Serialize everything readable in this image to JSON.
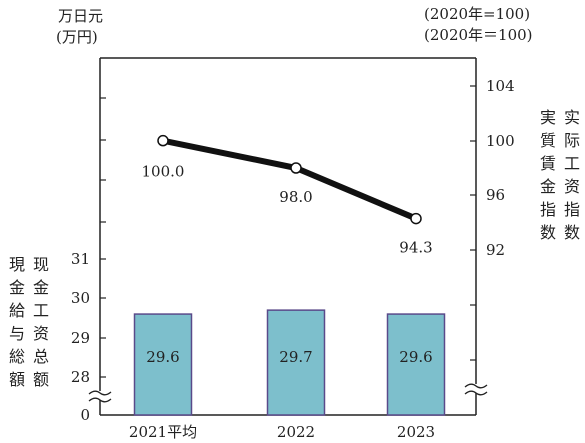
{
  "chart_data": {
    "type": "bar+line",
    "categories": [
      "2021平均",
      "2022",
      "2023"
    ],
    "series": [
      {
        "name": "現金給与総額",
        "type": "bar",
        "axis": "left",
        "values": [
          29.6,
          29.7,
          29.6
        ],
        "data_labels": [
          "29.6",
          "29.7",
          "29.6"
        ]
      },
      {
        "name": "実質賃金指数",
        "type": "line",
        "axis": "right",
        "values": [
          100.0,
          98.0,
          94.3
        ],
        "data_labels": [
          "100.0",
          "98.0",
          "94.3"
        ]
      }
    ],
    "left_axis": {
      "unit_ja": "万日元",
      "unit_zh": "(万円)",
      "title_ja": "現金給与総額",
      "title_zh": "现金工资总额",
      "ticks": [
        "0",
        "28",
        "29",
        "30",
        "31"
      ],
      "broken": true
    },
    "right_axis": {
      "unit_ja": "(2020年=100)",
      "unit_zh": "(2020年＝100)",
      "title_ja": "実質賃金指数",
      "title_zh": "实际工资指数",
      "ticks": [
        "92",
        "96",
        "100",
        "104"
      ],
      "broken": true
    },
    "colors": {
      "bar_fill": "#7dbfcc",
      "bar_stroke": "#5a4a8a",
      "line": "#111111",
      "marker_fill": "#ffffff"
    },
    "grid": false
  }
}
